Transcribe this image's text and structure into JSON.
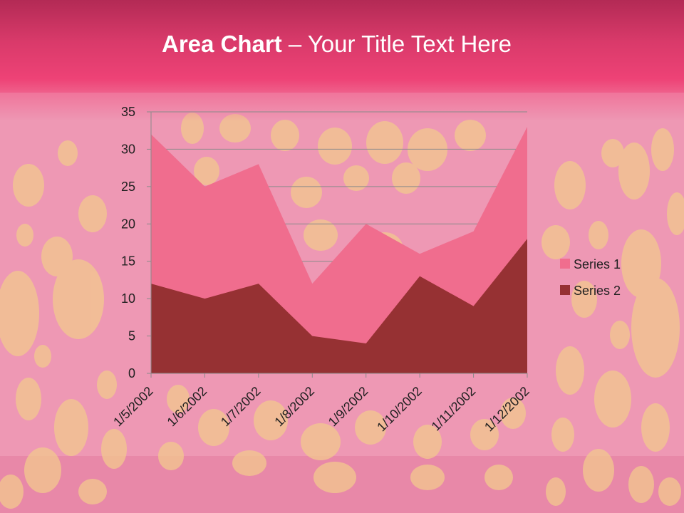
{
  "slide": {
    "title_bold": "Area Chart",
    "title_rest": " – Your Title Text Here",
    "colors": {
      "title_band": "#e03a6b",
      "background": "#ef9ab6",
      "dots": "#f3c98e"
    }
  },
  "chart_data": {
    "type": "area",
    "stacked": false,
    "categories": [
      "1/5/2002",
      "1/6/2002",
      "1/7/2002",
      "1/8/2002",
      "1/9/2002",
      "1/10/2002",
      "1/11/2002",
      "1/12/2002"
    ],
    "series": [
      {
        "name": "Series 1",
        "values": [
          32,
          25,
          28,
          12,
          20,
          16,
          19,
          33
        ],
        "color": "#f06d8e"
      },
      {
        "name": "Series 2",
        "values": [
          12,
          10,
          12,
          5,
          4,
          13,
          9,
          18
        ],
        "color": "#963133"
      }
    ],
    "yticks": [
      "0",
      "5",
      "10",
      "15",
      "20",
      "25",
      "30",
      "35"
    ],
    "ylim": [
      0,
      35
    ],
    "grid": true,
    "legend": "right",
    "xlabel": "",
    "ylabel": ""
  }
}
